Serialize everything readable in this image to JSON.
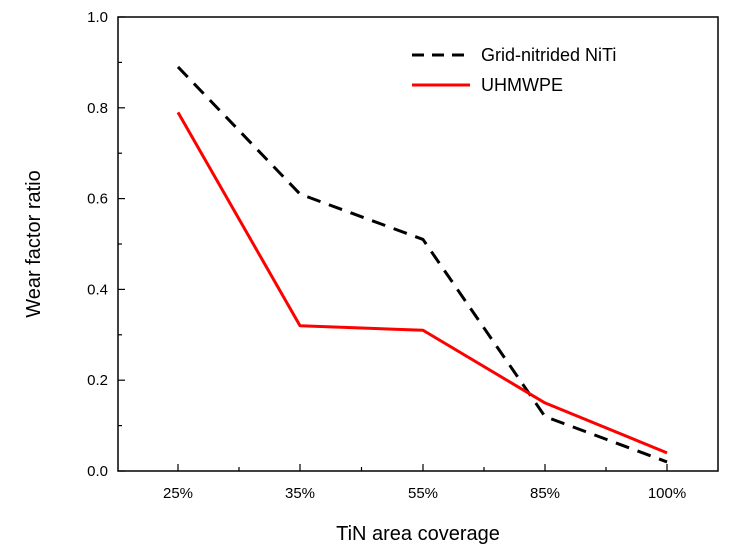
{
  "chart_data": {
    "type": "line",
    "categories": [
      "25%",
      "35%",
      "55%",
      "85%",
      "100%"
    ],
    "series": [
      {
        "name": "Grid-nitrided NiTi",
        "values": [
          0.89,
          0.61,
          0.51,
          0.12,
          0.02
        ],
        "color": "#000000",
        "style": "dashed"
      },
      {
        "name": "UHMWPE",
        "values": [
          0.79,
          0.32,
          0.31,
          0.15,
          0.04
        ],
        "color": "#ff0000",
        "style": "solid"
      }
    ],
    "xlabel": "TiN area coverage",
    "ylabel": "Wear factor ratio",
    "ylim": [
      0.0,
      1.0
    ],
    "yticks": [
      "0.0",
      "0.2",
      "0.4",
      "0.6",
      "0.8",
      "1.0"
    ],
    "grid": false,
    "legend_position": "top-right"
  }
}
